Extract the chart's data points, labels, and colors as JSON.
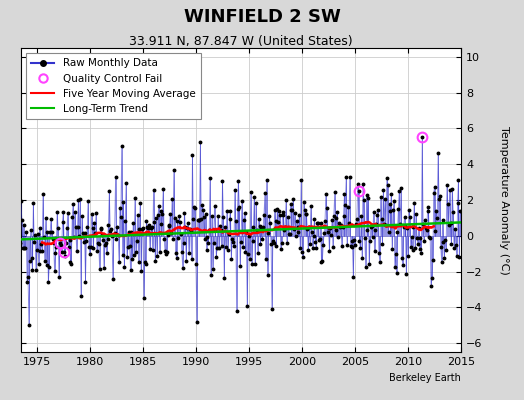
{
  "title": "WINFIELD 2 SW",
  "subtitle": "33.911 N, 87.847 W (United States)",
  "ylabel": "Temperature Anomaly (°C)",
  "xlabel_note": "Berkeley Earth",
  "xlim": [
    1973.5,
    2015
  ],
  "ylim": [
    -6.5,
    10.5
  ],
  "yticks": [
    -6,
    -4,
    -2,
    0,
    2,
    4,
    6,
    8,
    10
  ],
  "xticks": [
    1975,
    1980,
    1985,
    1990,
    1995,
    2000,
    2005,
    2010,
    2015
  ],
  "fig_bg_color": "#d8d8d8",
  "plot_bg_color": "#ffffff",
  "raw_line_color": "#3333cc",
  "raw_marker_color": "#000000",
  "ma_color": "#ff0000",
  "trend_color": "#00bb00",
  "qc_color": "#ff44ff",
  "seed": 42
}
